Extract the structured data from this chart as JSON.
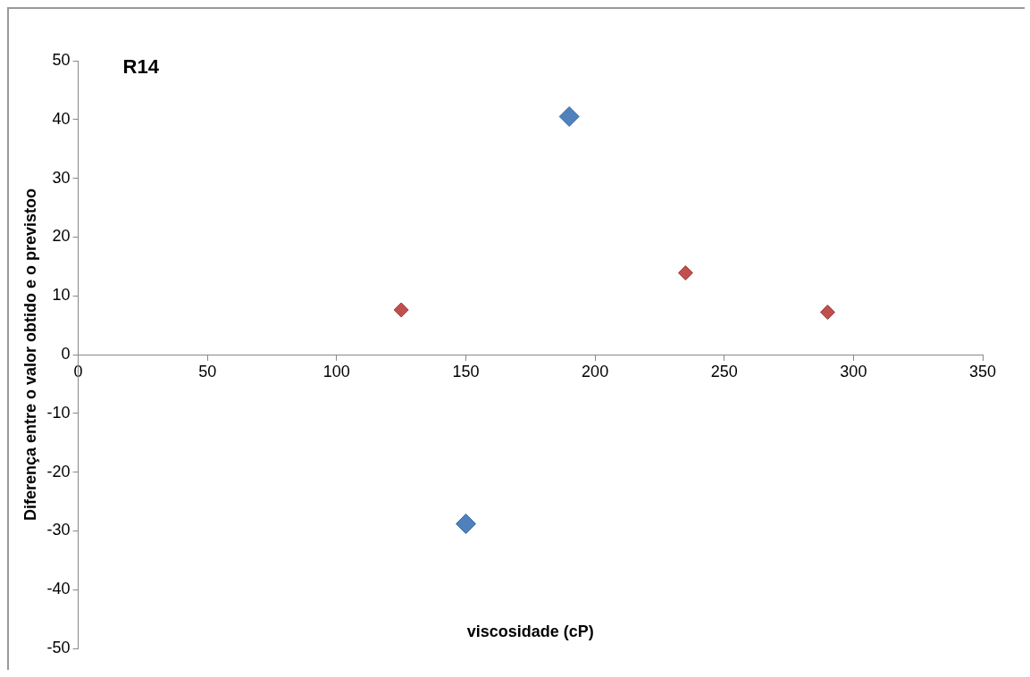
{
  "chart_data": {
    "type": "scatter",
    "xlabel": "viscosidade (cP)",
    "ylabel": "Diferença entre o valor obtido e o previstoo",
    "annotations": [
      "R14"
    ],
    "series": [
      {
        "color": "#4f81bd",
        "x": [
          150,
          190
        ],
        "values": [
          -28.8,
          40.5
        ]
      },
      {
        "color": "#c0504d",
        "x": [
          125,
          235,
          290
        ],
        "values": [
          7.6,
          13.9,
          7.2
        ]
      }
    ],
    "xlim": [
      0,
      350
    ],
    "xticks": [
      0,
      50,
      100,
      150,
      200,
      250,
      300,
      350
    ],
    "ylim": [
      -50,
      50
    ],
    "yticks": [
      -50,
      -40,
      -30,
      -20,
      -10,
      0,
      10,
      20,
      30,
      40,
      50
    ],
    "marker": "diamond",
    "grid": false,
    "legend": false
  }
}
